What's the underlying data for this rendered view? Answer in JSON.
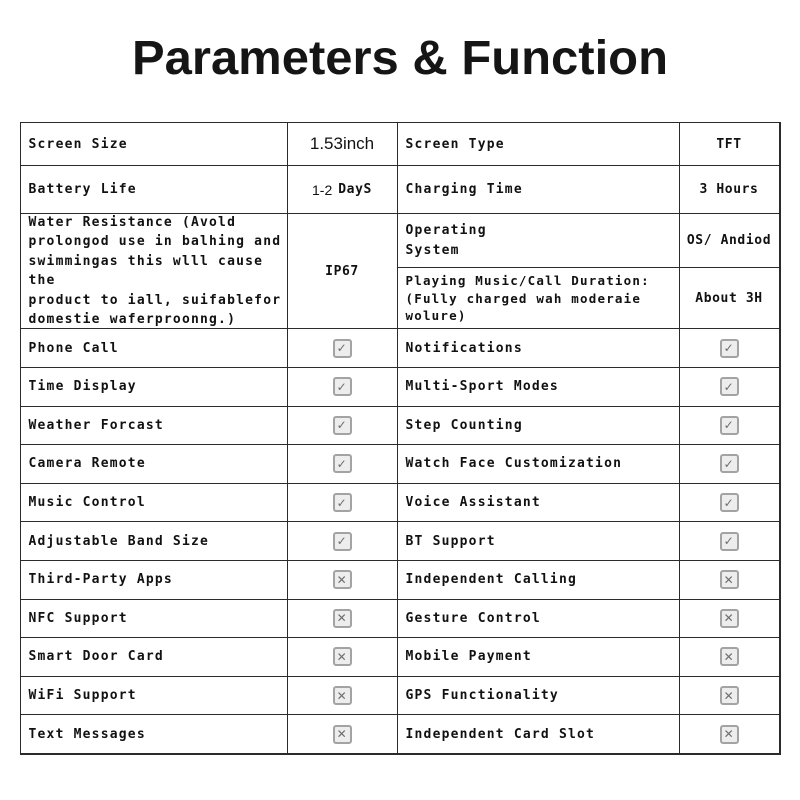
{
  "page": {
    "title": "Parameters & Function"
  },
  "colors": {
    "text": "#111111",
    "border": "#2b2b2b",
    "checkbox_border": "#a3a3a3",
    "checkbox_bg": "#ededed",
    "checkbox_mark": "#6e6e6e"
  },
  "icons": {
    "checked": "✓",
    "unchecked": "✕"
  },
  "table": {
    "spec_rows": [
      {
        "left": {
          "label": "Screen Size",
          "value": "1.53inch"
        },
        "right": {
          "label": "Screen Type",
          "value": "TFT"
        }
      },
      {
        "left": {
          "label": "Battery Life",
          "value_prefix": "1-2",
          "value": "DayS"
        },
        "right": {
          "label": "Charging Time",
          "value": "3 Hours"
        }
      }
    ],
    "water_row": {
      "label": "Water Resistance (Avold\nprolongod use in balhing and\nswimmingas this wlll cause the\nproduct to iall, suifablefor\ndomestie waferproonng.)",
      "value": "IP67",
      "right_top": {
        "label": "Operating\nSystem",
        "value": "OS/ Andiod"
      },
      "right_bottom": {
        "label": "Playing Music/Call Duration:\n(Fully charged wah moderaie\nwolure)",
        "value": "About 3H"
      }
    },
    "feature_rows": [
      {
        "left": {
          "label": "Phone Call",
          "checked": true,
          "mark": "✓"
        },
        "right": {
          "label": "Notifications",
          "checked": true,
          "mark": "✓"
        }
      },
      {
        "left": {
          "label": "Time Display",
          "checked": true,
          "mark": "✓"
        },
        "right": {
          "label": "Multi-Sport Modes",
          "checked": true,
          "mark": "✓"
        }
      },
      {
        "left": {
          "label": "Weather Forcast",
          "checked": true,
          "mark": "✓"
        },
        "right": {
          "label": "Step Counting",
          "checked": true,
          "mark": "✓"
        }
      },
      {
        "left": {
          "label": "Camera Remote",
          "checked": true,
          "mark": "✓"
        },
        "right": {
          "label": "Watch Face Customization",
          "checked": true,
          "mark": "✓"
        }
      },
      {
        "left": {
          "label": "Music Control",
          "checked": true,
          "mark": "✓"
        },
        "right": {
          "label": "Voice Assistant",
          "checked": true,
          "mark": "✓"
        }
      },
      {
        "left": {
          "label": "Adjustable Band Size",
          "checked": true,
          "mark": "✓"
        },
        "right": {
          "label": "BT Support",
          "checked": true,
          "mark": "✓"
        }
      },
      {
        "left": {
          "label": "Third-Party Apps",
          "checked": false,
          "mark": "✕"
        },
        "right": {
          "label": "Independent Calling",
          "checked": false,
          "mark": "✕"
        }
      },
      {
        "left": {
          "label": "NFC Support",
          "checked": false,
          "mark": "✕"
        },
        "right": {
          "label": "Gesture Control",
          "checked": false,
          "mark": "✕"
        }
      },
      {
        "left": {
          "label": "Smart Door Card",
          "checked": false,
          "mark": "✕"
        },
        "right": {
          "label": "Mobile Payment",
          "checked": false,
          "mark": "✕"
        }
      },
      {
        "left": {
          "label": "WiFi Support",
          "checked": false,
          "mark": "✕"
        },
        "right": {
          "label": "GPS Functionality",
          "checked": false,
          "mark": "✕"
        }
      },
      {
        "left": {
          "label": "Text Messages",
          "checked": false,
          "mark": "✕"
        },
        "right": {
          "label": "Independent Card Slot",
          "checked": false,
          "mark": "✕"
        }
      }
    ]
  }
}
